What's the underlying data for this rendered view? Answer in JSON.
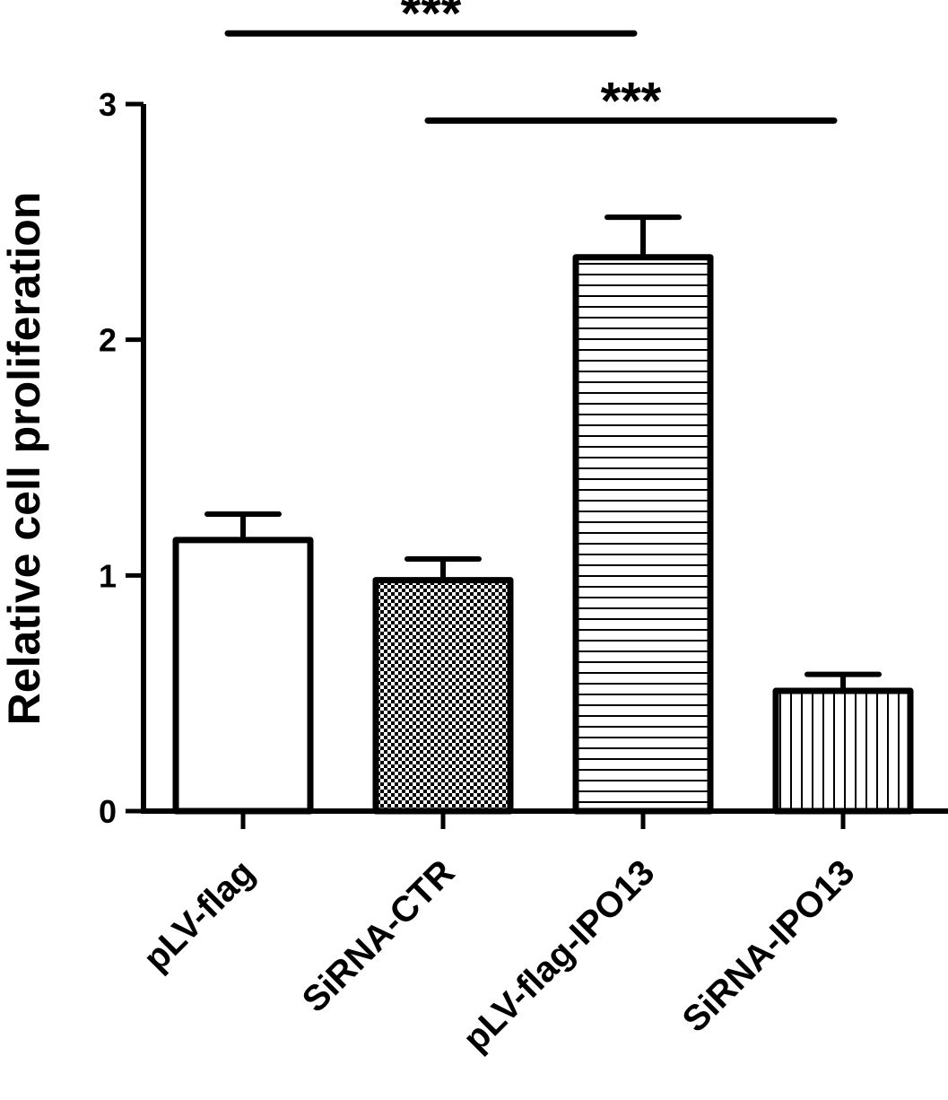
{
  "chart_data": {
    "type": "bar",
    "title": "",
    "xlabel": "",
    "ylabel": "Relative cell proliferation",
    "ylim": [
      0,
      3
    ],
    "yticks": [
      {
        "value": 0,
        "label": "0"
      },
      {
        "value": 1,
        "label": "1"
      },
      {
        "value": 2,
        "label": "2"
      },
      {
        "value": 3,
        "label": "3"
      }
    ],
    "categories": [
      "pLV-flag",
      "SiRNA-CTR",
      "pLV-flag-IPO13",
      "SiRNA-IPO13"
    ],
    "values": [
      1.15,
      0.98,
      2.35,
      0.51
    ],
    "errors": [
      0.11,
      0.09,
      0.17,
      0.07
    ],
    "fill_patterns": [
      "none",
      "checkered",
      "horizontal-lines",
      "vertical-lines"
    ],
    "grid": false,
    "legend": "none",
    "colors": {
      "bar_stroke": "#000000",
      "bar_fill": "#ffffff"
    },
    "annotations": [
      {
        "text": "***",
        "from_index": 0,
        "to_index": 2,
        "y_value": 3.3
      },
      {
        "text": "***",
        "from_index": 1,
        "to_index": 3,
        "y_value": 2.93
      }
    ]
  }
}
